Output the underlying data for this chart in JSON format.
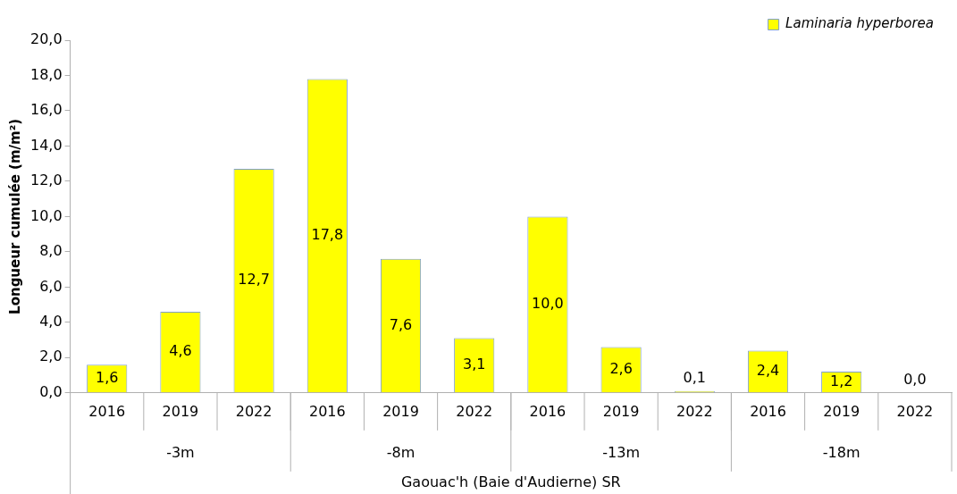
{
  "chart_data": {
    "type": "bar",
    "ylabel": "Longueur cumulée (m/m²)",
    "xlabel": "Gaouac'h (Baie d'Audierne) SR",
    "categories": [
      "2016",
      "2019",
      "2022",
      "2016",
      "2019",
      "2022",
      "2016",
      "2019",
      "2022",
      "2016",
      "2019",
      "2022"
    ],
    "annotations": [
      "-3m",
      "-8m",
      "-13m",
      "-18m"
    ],
    "series": [
      {
        "name": "Laminaria hyperborea",
        "color": "#ffff00",
        "values": [
          1.6,
          4.6,
          12.7,
          17.8,
          7.6,
          3.1,
          10.0,
          2.6,
          0.1,
          2.4,
          1.2,
          0.0
        ],
        "value_labels": [
          "1,6",
          "4,6",
          "12,7",
          "17,8",
          "7,6",
          "3,1",
          "10,0",
          "2,6",
          "0,1",
          "2,4",
          "1,2",
          "0,0"
        ]
      }
    ],
    "ylim": [
      0,
      20
    ],
    "yticks": [
      {
        "value": 0,
        "label": "0,0"
      },
      {
        "value": 2,
        "label": "2,0"
      },
      {
        "value": 4,
        "label": "4,0"
      },
      {
        "value": 6,
        "label": "6,0"
      },
      {
        "value": 8,
        "label": "8,0"
      },
      {
        "value": 10,
        "label": "10,0"
      },
      {
        "value": 12,
        "label": "12,0"
      },
      {
        "value": 14,
        "label": "14,0"
      },
      {
        "value": 16,
        "label": "16,0"
      },
      {
        "value": 18,
        "label": "18,0"
      },
      {
        "value": 20,
        "label": "20,0"
      }
    ],
    "grid": false,
    "legend": "top right"
  }
}
